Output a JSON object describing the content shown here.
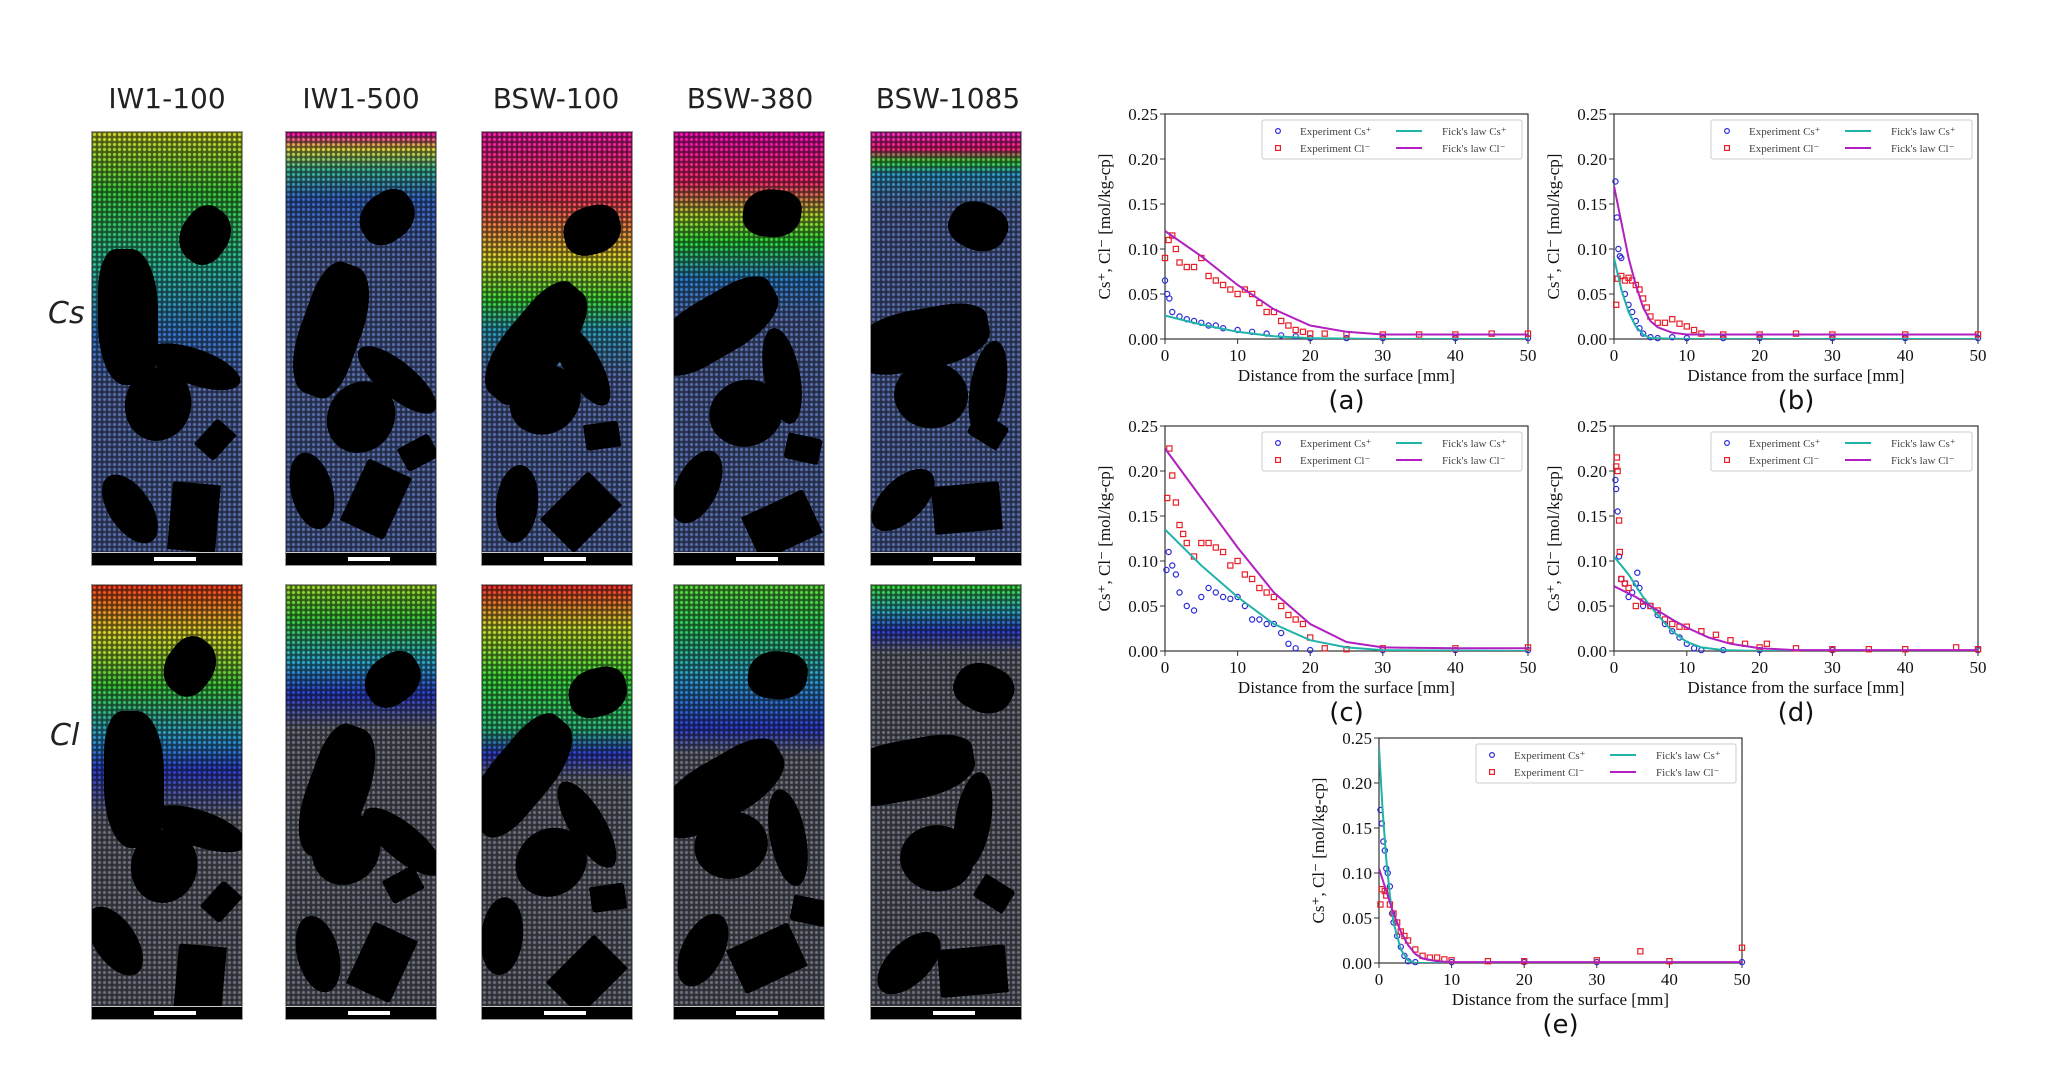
{
  "figure": {
    "columns": [
      "IW1-100",
      "IW1-500",
      "BSW-100",
      "BSW-380",
      "BSW-1085"
    ],
    "rows": [
      "Cs",
      "Cl"
    ]
  },
  "colors": {
    "experiment_cs": "#2b2bd8",
    "experiment_cl": "#e8202a",
    "fick_cs": "#1fb3a9",
    "fick_cl": "#b11fc0"
  },
  "chart_data": [
    {
      "type": "scatter+line",
      "panel": "(a)",
      "xlabel": "Distance from the surface [mm]",
      "ylabel": "Cs⁺, Cl⁻ [mol/kg-cp]",
      "xlim": [
        0,
        50
      ],
      "ylim": [
        0,
        0.25
      ],
      "xticks": [
        "0",
        "10",
        "20",
        "30",
        "40",
        "50"
      ],
      "yticks": [
        "0.00",
        "0.05",
        "0.10",
        "0.15",
        "0.20",
        "0.25"
      ],
      "legend_position": "top-right",
      "grid": false,
      "series": [
        {
          "name": "Experiment Cs⁺",
          "kind": "exp_cs",
          "x": [
            0,
            0.3,
            0.6,
            1,
            2,
            3,
            4,
            5,
            6,
            7,
            8,
            10,
            12,
            14,
            16,
            18,
            20,
            25,
            30,
            40,
            50
          ],
          "y": [
            0.065,
            0.05,
            0.045,
            0.03,
            0.025,
            0.022,
            0.02,
            0.018,
            0.015,
            0.015,
            0.012,
            0.01,
            0.008,
            0.006,
            0.004,
            0.003,
            0.001,
            0.001,
            0.001,
            0.001,
            0.001
          ]
        },
        {
          "name": "Experiment Cl⁻",
          "kind": "exp_cl",
          "x": [
            0,
            0.5,
            1,
            1.5,
            2,
            3,
            4,
            5,
            6,
            7,
            8,
            9,
            10,
            11,
            12,
            13,
            14,
            15,
            16,
            17,
            18,
            19,
            20,
            22,
            25,
            30,
            35,
            40,
            45,
            50
          ],
          "y": [
            0.09,
            0.11,
            0.115,
            0.1,
            0.085,
            0.08,
            0.08,
            0.09,
            0.07,
            0.065,
            0.06,
            0.055,
            0.05,
            0.055,
            0.05,
            0.04,
            0.03,
            0.03,
            0.02,
            0.015,
            0.01,
            0.008,
            0.006,
            0.006,
            0.005,
            0.005,
            0.005,
            0.005,
            0.006,
            0.006
          ]
        },
        {
          "name": "Fick's law Cs⁺",
          "kind": "fick_cs",
          "x": [
            0,
            5,
            10,
            15,
            20,
            30,
            50
          ],
          "y": [
            0.026,
            0.016,
            0.008,
            0.003,
            0.001,
            0,
            0
          ]
        },
        {
          "name": "Fick's law Cl⁻",
          "kind": "fick_cl",
          "x": [
            0,
            5,
            10,
            15,
            20,
            25,
            30,
            40,
            50
          ],
          "y": [
            0.12,
            0.092,
            0.06,
            0.033,
            0.015,
            0.008,
            0.005,
            0.005,
            0.005
          ]
        }
      ]
    },
    {
      "type": "scatter+line",
      "panel": "(b)",
      "xlabel": "Distance from the surface [mm]",
      "ylabel": "Cs⁺, Cl⁻ [mol/kg-cp]",
      "xlim": [
        0,
        50
      ],
      "ylim": [
        0,
        0.25
      ],
      "xticks": [
        "0",
        "10",
        "20",
        "30",
        "40",
        "50"
      ],
      "yticks": [
        "0.00",
        "0.05",
        "0.10",
        "0.15",
        "0.20",
        "0.25"
      ],
      "legend_position": "top-right",
      "grid": false,
      "series": [
        {
          "name": "Experiment Cs⁺",
          "kind": "exp_cs",
          "x": [
            0.2,
            0.4,
            0.6,
            0.8,
            1,
            1.5,
            2,
            2.5,
            3,
            3.5,
            4,
            5,
            6,
            8,
            10,
            15,
            20,
            30,
            40,
            50
          ],
          "y": [
            0.175,
            0.135,
            0.1,
            0.092,
            0.09,
            0.05,
            0.038,
            0.03,
            0.02,
            0.012,
            0.006,
            0.002,
            0.001,
            0.002,
            0.001,
            0.001,
            0.001,
            0.001,
            0.001,
            0.001
          ]
        },
        {
          "name": "Experiment Cl⁻",
          "kind": "exp_cl",
          "x": [
            0.3,
            0.5,
            1,
            1.5,
            2,
            2.5,
            3,
            3.5,
            4,
            4.5,
            5,
            6,
            7,
            8,
            9,
            10,
            11,
            12,
            15,
            20,
            25,
            30,
            40,
            50
          ],
          "y": [
            0.038,
            0.067,
            0.07,
            0.065,
            0.068,
            0.065,
            0.06,
            0.055,
            0.045,
            0.035,
            0.025,
            0.018,
            0.018,
            0.022,
            0.017,
            0.014,
            0.01,
            0.006,
            0.005,
            0.005,
            0.006,
            0.005,
            0.005,
            0.005
          ]
        },
        {
          "name": "Fick's law Cs⁺",
          "kind": "fick_cs",
          "x": [
            0,
            1,
            2,
            3,
            4,
            5,
            10,
            50
          ],
          "y": [
            0.09,
            0.055,
            0.03,
            0.014,
            0.005,
            0.001,
            0,
            0
          ]
        },
        {
          "name": "Fick's law Cl⁻",
          "kind": "fick_cl",
          "x": [
            0,
            1,
            2,
            3,
            4,
            5,
            6,
            8,
            10,
            50
          ],
          "y": [
            0.17,
            0.13,
            0.09,
            0.06,
            0.035,
            0.02,
            0.013,
            0.007,
            0.005,
            0.005
          ]
        }
      ]
    },
    {
      "type": "scatter+line",
      "panel": "(c)",
      "xlabel": "Distance from the surface [mm]",
      "ylabel": "Cs⁺, Cl⁻ [mol/kg-cp]",
      "xlim": [
        0,
        50
      ],
      "ylim": [
        0,
        0.25
      ],
      "xticks": [
        "0",
        "10",
        "20",
        "30",
        "40",
        "50"
      ],
      "yticks": [
        "0.00",
        "0.05",
        "0.10",
        "0.15",
        "0.20",
        "0.25"
      ],
      "legend_position": "top-right",
      "grid": false,
      "series": [
        {
          "name": "Experiment Cs⁺",
          "kind": "exp_cs",
          "x": [
            0.2,
            0.5,
            1,
            1.5,
            2,
            3,
            4,
            5,
            6,
            7,
            8,
            9,
            10,
            11,
            12,
            13,
            14,
            15,
            16,
            17,
            18,
            20,
            30,
            40,
            50
          ],
          "y": [
            0.09,
            0.11,
            0.095,
            0.085,
            0.065,
            0.05,
            0.045,
            0.06,
            0.07,
            0.065,
            0.06,
            0.058,
            0.06,
            0.05,
            0.035,
            0.035,
            0.03,
            0.03,
            0.02,
            0.008,
            0.003,
            0.001,
            0.001,
            0.001,
            0.001
          ]
        },
        {
          "name": "Experiment Cl⁻",
          "kind": "exp_cl",
          "x": [
            0.3,
            0.6,
            1,
            1.5,
            2,
            2.5,
            3,
            4,
            5,
            6,
            7,
            8,
            9,
            10,
            11,
            12,
            13,
            14,
            15,
            16,
            17,
            18,
            19,
            20,
            22,
            25,
            30,
            40,
            50
          ],
          "y": [
            0.17,
            0.225,
            0.195,
            0.165,
            0.14,
            0.13,
            0.12,
            0.105,
            0.12,
            0.12,
            0.115,
            0.11,
            0.095,
            0.1,
            0.085,
            0.08,
            0.07,
            0.065,
            0.06,
            0.05,
            0.04,
            0.035,
            0.03,
            0.015,
            0.003,
            0.002,
            0.003,
            0.003,
            0.004
          ]
        },
        {
          "name": "Fick's law Cs⁺",
          "kind": "fick_cs",
          "x": [
            0,
            5,
            10,
            15,
            20,
            25,
            30,
            50
          ],
          "y": [
            0.135,
            0.095,
            0.06,
            0.03,
            0.012,
            0.004,
            0.001,
            0
          ]
        },
        {
          "name": "Fick's law Cl⁻",
          "kind": "fick_cl",
          "x": [
            0,
            5,
            10,
            15,
            20,
            25,
            30,
            40,
            50
          ],
          "y": [
            0.225,
            0.17,
            0.115,
            0.065,
            0.03,
            0.01,
            0.004,
            0.003,
            0.003
          ]
        }
      ]
    },
    {
      "type": "scatter+line",
      "panel": "(d)",
      "xlabel": "Distance from the surface [mm]",
      "ylabel": "Cs⁺, Cl⁻ [mol/kg-cp]",
      "xlim": [
        0,
        50
      ],
      "ylim": [
        0,
        0.25
      ],
      "xticks": [
        "0",
        "10",
        "20",
        "30",
        "40",
        "50"
      ],
      "yticks": [
        "0.00",
        "0.05",
        "0.10",
        "0.15",
        "0.20",
        "0.25"
      ],
      "legend_position": "top-right",
      "grid": false,
      "series": [
        {
          "name": "Experiment Cs⁺",
          "kind": "exp_cs",
          "x": [
            0.2,
            0.3,
            0.5,
            0.7,
            1,
            1.5,
            2,
            2.5,
            3,
            3.2,
            3.5,
            4,
            5,
            6,
            7,
            8,
            9,
            10,
            11,
            12,
            15,
            20,
            30,
            50
          ],
          "y": [
            0.19,
            0.18,
            0.155,
            0.105,
            0.08,
            0.075,
            0.06,
            0.065,
            0.075,
            0.087,
            0.07,
            0.05,
            0.05,
            0.04,
            0.03,
            0.022,
            0.015,
            0.008,
            0.003,
            0.001,
            0.001,
            0.001,
            0.001,
            0.001
          ]
        },
        {
          "name": "Experiment Cl⁻",
          "kind": "exp_cl",
          "x": [
            0.3,
            0.4,
            0.5,
            0.7,
            0.8,
            1,
            1.5,
            2,
            3,
            4,
            5,
            6,
            7,
            8,
            9,
            10,
            12,
            14,
            16,
            18,
            20,
            21,
            25,
            30,
            35,
            40,
            47,
            50
          ],
          "y": [
            0.205,
            0.215,
            0.2,
            0.145,
            0.11,
            0.08,
            0.075,
            0.07,
            0.05,
            0.055,
            0.05,
            0.045,
            0.035,
            0.03,
            0.027,
            0.027,
            0.022,
            0.018,
            0.012,
            0.008,
            0.004,
            0.008,
            0.003,
            0.002,
            0.002,
            0.002,
            0.004,
            0.002
          ]
        },
        {
          "name": "Fick's law Cs⁺",
          "kind": "fick_cs",
          "x": [
            0,
            2,
            4,
            6,
            8,
            10,
            12,
            15,
            20,
            50
          ],
          "y": [
            0.105,
            0.085,
            0.06,
            0.04,
            0.022,
            0.01,
            0.004,
            0.001,
            0,
            0
          ]
        },
        {
          "name": "Fick's law Cl⁻",
          "kind": "fick_cl",
          "x": [
            0,
            3,
            5,
            8,
            10,
            13,
            16,
            20,
            25,
            50
          ],
          "y": [
            0.072,
            0.06,
            0.05,
            0.035,
            0.026,
            0.015,
            0.008,
            0.003,
            0.001,
            0.001
          ]
        }
      ]
    },
    {
      "type": "scatter+line",
      "panel": "(e)",
      "xlabel": "Distance from the surface [mm]",
      "ylabel": "Cs⁺, Cl⁻ [mol/kg-cp]",
      "xlim": [
        0,
        50
      ],
      "ylim": [
        0,
        0.25
      ],
      "xticks": [
        "0",
        "10",
        "20",
        "30",
        "40",
        "50"
      ],
      "yticks": [
        "0.00",
        "0.05",
        "0.10",
        "0.15",
        "0.20",
        "0.25"
      ],
      "legend_position": "top-right",
      "grid": false,
      "series": [
        {
          "name": "Experiment Cs⁺",
          "kind": "exp_cs",
          "x": [
            0.2,
            0.4,
            0.6,
            0.8,
            1,
            1.2,
            1.5,
            1.8,
            2,
            2.5,
            3,
            3.5,
            4,
            5,
            10,
            20,
            30,
            50
          ],
          "y": [
            0.17,
            0.155,
            0.135,
            0.125,
            0.105,
            0.1,
            0.085,
            0.055,
            0.045,
            0.03,
            0.018,
            0.008,
            0.002,
            0.001,
            0.001,
            0.001,
            0.001,
            0.001
          ]
        },
        {
          "name": "Experiment Cl⁻",
          "kind": "exp_cl",
          "x": [
            0.2,
            0.4,
            0.8,
            1,
            1.5,
            2,
            2.5,
            3,
            3.5,
            4,
            5,
            6,
            7,
            8,
            9,
            10,
            15,
            20,
            30,
            36,
            40,
            50
          ],
          "y": [
            0.065,
            0.082,
            0.08,
            0.075,
            0.065,
            0.055,
            0.045,
            0.035,
            0.03,
            0.025,
            0.015,
            0.008,
            0.006,
            0.006,
            0.004,
            0.003,
            0.002,
            0.002,
            0.003,
            0.013,
            0.002,
            0.017
          ]
        },
        {
          "name": "Fick's law Cs⁺",
          "kind": "fick_cs",
          "x": [
            0,
            0.5,
            1,
            1.5,
            2,
            3,
            4,
            5,
            50
          ],
          "y": [
            0.24,
            0.17,
            0.115,
            0.075,
            0.045,
            0.015,
            0.003,
            0,
            0
          ]
        },
        {
          "name": "Fick's law Cl⁻",
          "kind": "fick_cl",
          "x": [
            0,
            1,
            2,
            3,
            4,
            5,
            6,
            8,
            10,
            50
          ],
          "y": [
            0.105,
            0.08,
            0.055,
            0.035,
            0.02,
            0.01,
            0.005,
            0.002,
            0.001,
            0.001
          ]
        }
      ]
    }
  ]
}
